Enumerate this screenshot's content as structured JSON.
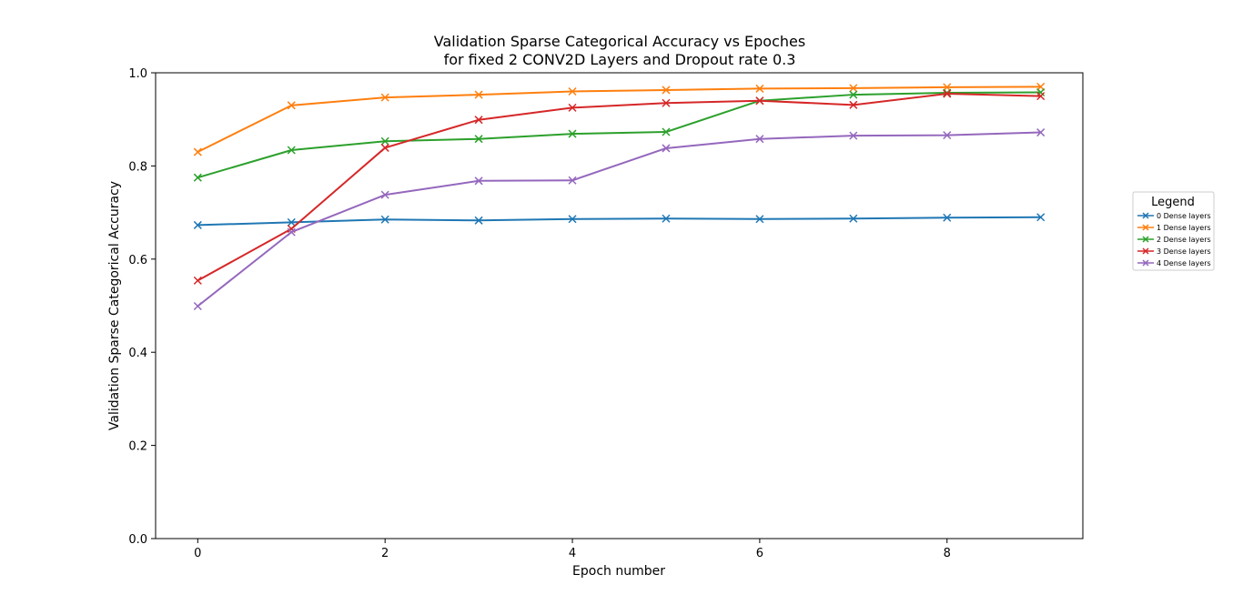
{
  "chart_data": {
    "type": "line",
    "title": "Validation Sparse Categorical Accuracy vs Epoches",
    "subtitle": "for fixed 2 CONV2D Layers and Dropout rate 0.3",
    "xlabel": "Epoch number",
    "ylabel": "Validation Sparse Categorical Accuracy",
    "xlim": [
      -0.45,
      9.45
    ],
    "ylim": [
      0,
      1.0
    ],
    "xticks": [
      0,
      2,
      4,
      6,
      8
    ],
    "yticks": [
      0.0,
      0.2,
      0.4,
      0.6,
      0.8,
      1.0
    ],
    "xtick_labels": [
      "0",
      "2",
      "4",
      "6",
      "8"
    ],
    "ytick_labels": [
      "0.0",
      "0.2",
      "0.4",
      "0.6",
      "0.8",
      "1.0"
    ],
    "grid": false,
    "marker": "x",
    "legend": {
      "title": "Legend",
      "placement": "outside-right"
    },
    "x": [
      0,
      1,
      2,
      3,
      4,
      5,
      6,
      7,
      8,
      9
    ],
    "series": [
      {
        "name": "0 Dense layers",
        "color": "#1f77b4",
        "values": [
          0.673,
          0.679,
          0.685,
          0.683,
          0.686,
          0.687,
          0.686,
          0.687,
          0.689,
          0.69
        ]
      },
      {
        "name": "1 Dense layers",
        "color": "#ff7f0e",
        "values": [
          0.83,
          0.93,
          0.947,
          0.953,
          0.96,
          0.963,
          0.966,
          0.967,
          0.969,
          0.97
        ]
      },
      {
        "name": "2 Dense layers",
        "color": "#2ca02c",
        "values": [
          0.775,
          0.834,
          0.853,
          0.858,
          0.869,
          0.873,
          0.94,
          0.953,
          0.957,
          0.958
        ]
      },
      {
        "name": "3 Dense layers",
        "color": "#d62728",
        "values": [
          0.554,
          0.665,
          0.839,
          0.899,
          0.925,
          0.935,
          0.94,
          0.931,
          0.955,
          0.95
        ]
      },
      {
        "name": "4 Dense layers",
        "color": "#9467bd",
        "values": [
          0.499,
          0.658,
          0.738,
          0.768,
          0.769,
          0.838,
          0.858,
          0.865,
          0.866,
          0.872
        ]
      }
    ]
  }
}
